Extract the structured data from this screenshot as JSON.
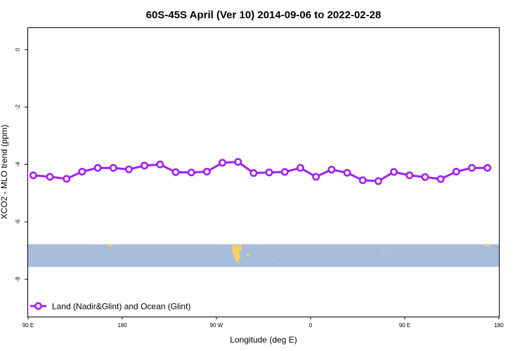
{
  "chart_data": {
    "type": "line",
    "title": "60S-45S April (Ver 10)   2014-09-06 to 2022-02-28",
    "xlabel": "Longitude (deg E)",
    "ylabel": "XCO2 - MLO trend (ppm)",
    "x_ticks": [
      "90 E",
      "180",
      "90 W",
      "0",
      "90 E",
      "180"
    ],
    "y_ticks": [
      "0",
      "-2",
      "-4",
      "-6",
      "-8"
    ],
    "y_tick_values": [
      0,
      -2,
      -4,
      -6,
      -8
    ],
    "xlim": [
      -267,
      186
    ],
    "ylim": [
      -9.3,
      0.75
    ],
    "grid": false,
    "legend_position": "bottom-left",
    "series": [
      {
        "name": "Land (Nadir&Glint) and Ocean (Glint)",
        "color": "#a020f0",
        "x": [
          -262,
          -246,
          -230,
          -215,
          -200,
          -185,
          -170,
          -155,
          -140,
          -125,
          -110,
          -95,
          -80,
          -65,
          -50,
          -35,
          -20,
          -5,
          10,
          25,
          40,
          55,
          70,
          85,
          100,
          115,
          130,
          145,
          160,
          175
        ],
        "y": [
          -4.38,
          -4.43,
          -4.5,
          -4.25,
          -4.12,
          -4.12,
          -4.17,
          -4.04,
          -4.0,
          -4.27,
          -4.28,
          -4.25,
          -3.94,
          -3.91,
          -4.3,
          -4.28,
          -4.26,
          -4.12,
          -4.43,
          -4.18,
          -4.29,
          -4.55,
          -4.58,
          -4.26,
          -4.38,
          -4.44,
          -4.51,
          -4.25,
          -4.12,
          -4.12
        ]
      }
    ],
    "map_strip": {
      "y_range": [
        -7.57,
        -6.78
      ],
      "ocean_color": "#a8bcdc",
      "land_color": "#fad060"
    }
  }
}
